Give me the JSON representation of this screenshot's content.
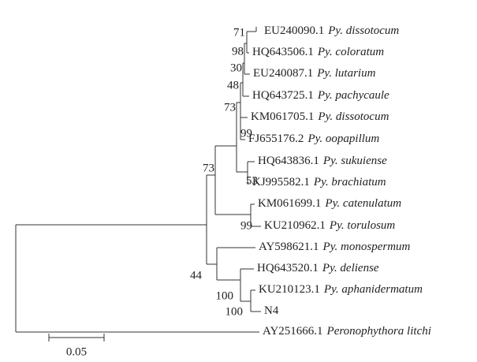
{
  "leaves": [
    {
      "accession": "EU240090.1",
      "species": "Py. dissotocum"
    },
    {
      "accession": "HQ643506.1",
      "species": "Py. coloratum"
    },
    {
      "accession": "EU240087.1",
      "species": "Py. lutarium"
    },
    {
      "accession": "HQ643725.1",
      "species": "Py. pachycaule"
    },
    {
      "accession": "KM061705.1",
      "species": "Py. dissotocum"
    },
    {
      "accession": "FJ655176.2",
      "species": "Py. oopapillum"
    },
    {
      "accession": "HQ643836.1",
      "species": "Py. sukuiense"
    },
    {
      "accession": "KJ995582.1",
      "species": "Py. brachiatum"
    },
    {
      "accession": "KM061699.1",
      "species": "Py. catenulatum"
    },
    {
      "accession": "KU210962.1",
      "species": "Py. torulosum"
    },
    {
      "accession": "AY598621.1",
      "species": "Py. monospermum"
    },
    {
      "accession": "HQ643520.1",
      "species": "Py. deliense"
    },
    {
      "accession": "KU210123.1",
      "species": "Py. aphanidermatum"
    },
    {
      "accession": "N4"
    },
    {
      "accession": "AY251666.1",
      "species": "Peronophythora litchi"
    }
  ],
  "bootstrap": [
    "71",
    "98",
    "30",
    "48",
    "73",
    "99",
    "53",
    "73",
    "99",
    "44",
    "100",
    "100"
  ],
  "scale_bar": {
    "label": "0.05"
  }
}
